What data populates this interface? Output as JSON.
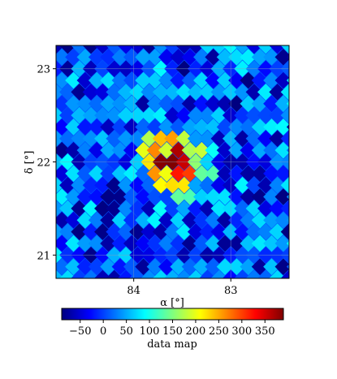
{
  "chart_data": {
    "type": "heatmap",
    "title": "",
    "xlabel": "α [°]",
    "ylabel": "δ [°]",
    "x_axis": {
      "range": [
        84.8,
        82.4
      ],
      "inverted": true,
      "ticks": [
        84,
        83
      ],
      "tick_labels": [
        "84",
        "83"
      ]
    },
    "y_axis": {
      "range": [
        20.75,
        23.25
      ],
      "ticks": [
        21,
        22,
        23
      ],
      "tick_labels": [
        "21",
        "22",
        "23"
      ]
    },
    "grid": true,
    "pixel_grid": {
      "cols": 26,
      "rows": 26,
      "projection": "healpix-diamond"
    },
    "background_counts": {
      "mean": 0,
      "spread": [
        -90,
        90
      ]
    },
    "source": {
      "x": 83.6,
      "y": 22.0,
      "peak": 390,
      "sigma_deg": 0.22,
      "label": ""
    },
    "colorbar": {
      "label": "data map",
      "range": [
        -90,
        390
      ],
      "ticks": [
        -50,
        0,
        50,
        100,
        150,
        200,
        250,
        300,
        350
      ],
      "tick_labels": [
        "−50",
        "0",
        "50",
        "100",
        "150",
        "200",
        "250",
        "300",
        "350"
      ],
      "colormap": "jet",
      "colors": [
        "#00007f",
        "#0000ff",
        "#007fff",
        "#00ffff",
        "#7fff7f",
        "#ffff00",
        "#ff7f00",
        "#ff0000",
        "#7f0000"
      ]
    }
  }
}
